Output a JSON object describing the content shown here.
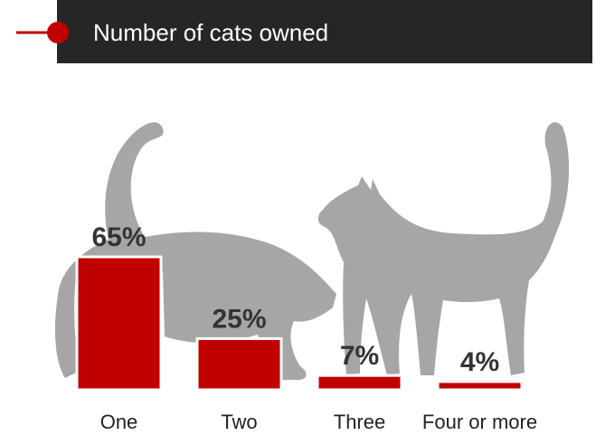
{
  "chart_data": {
    "type": "bar",
    "title": "Number of cats owned",
    "categories": [
      "One",
      "Two",
      "Three",
      "Four or more"
    ],
    "values": [
      65,
      25,
      7,
      4
    ],
    "value_labels": [
      "65%",
      "25%",
      "7%",
      "4%"
    ],
    "color": "#c00000"
  }
}
